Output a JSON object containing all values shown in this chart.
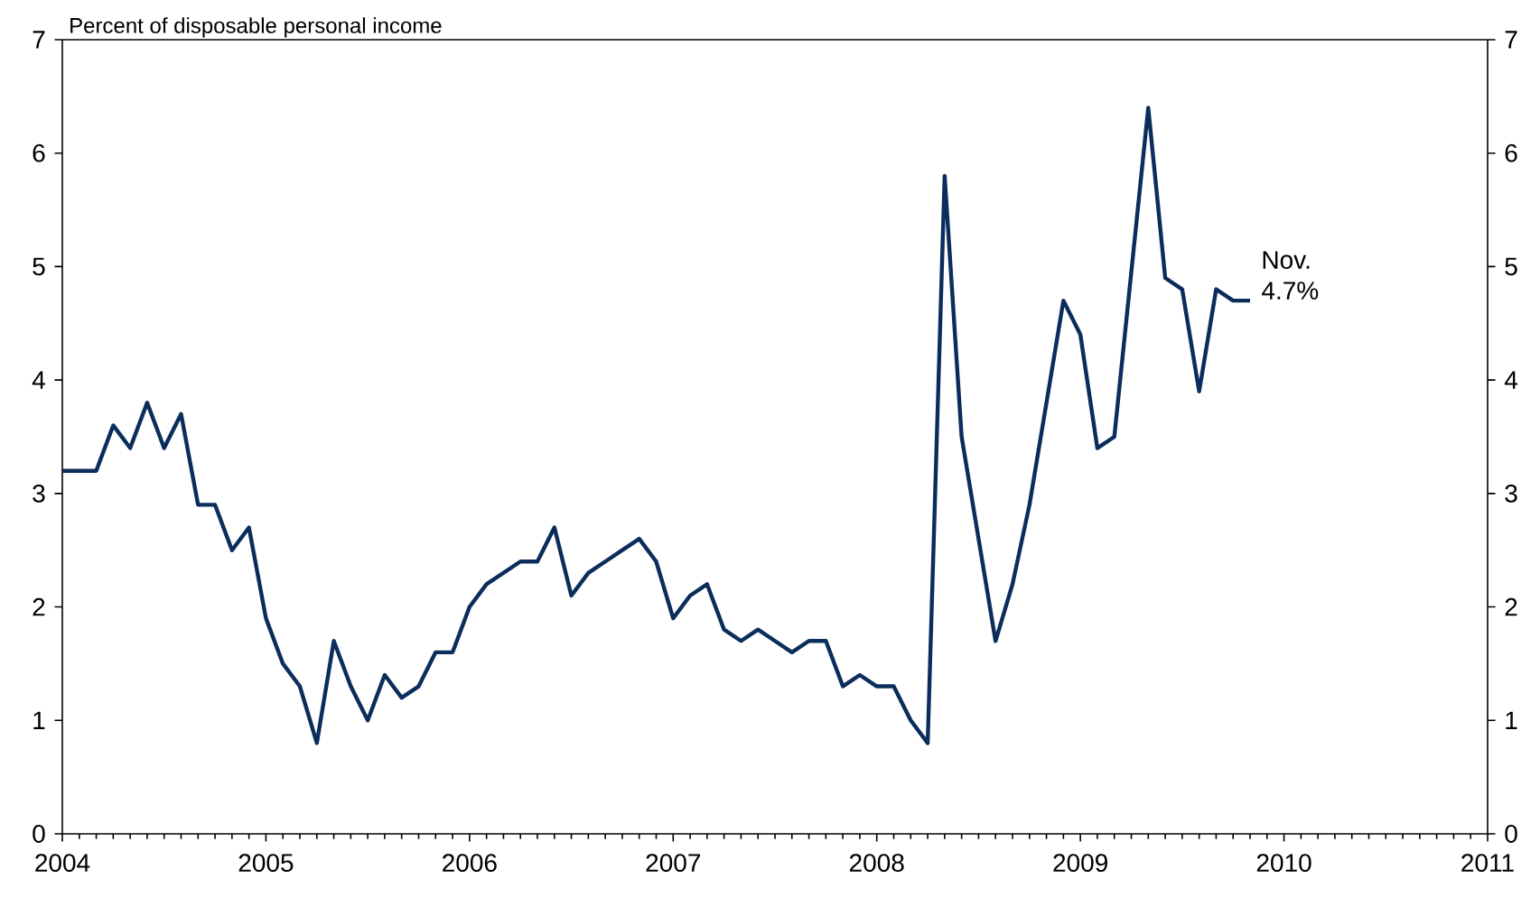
{
  "chart_data": {
    "type": "line",
    "ylabel": "Percent of disposable personal income",
    "x": [
      "2004-01",
      "2004-02",
      "2004-03",
      "2004-04",
      "2004-05",
      "2004-06",
      "2004-07",
      "2004-08",
      "2004-09",
      "2004-10",
      "2004-11",
      "2004-12",
      "2005-01",
      "2005-02",
      "2005-03",
      "2005-04",
      "2005-05",
      "2005-06",
      "2005-07",
      "2005-08",
      "2005-09",
      "2005-10",
      "2005-11",
      "2005-12",
      "2006-01",
      "2006-02",
      "2006-03",
      "2006-04",
      "2006-05",
      "2006-06",
      "2006-07",
      "2006-08",
      "2006-09",
      "2006-10",
      "2006-11",
      "2006-12",
      "2007-01",
      "2007-02",
      "2007-03",
      "2007-04",
      "2007-05",
      "2007-06",
      "2007-07",
      "2007-08",
      "2007-09",
      "2007-10",
      "2007-11",
      "2007-12",
      "2008-01",
      "2008-02",
      "2008-03",
      "2008-04",
      "2008-05",
      "2008-06",
      "2008-07",
      "2008-08",
      "2008-09",
      "2008-10",
      "2008-11",
      "2008-12",
      "2009-01",
      "2009-02",
      "2009-03",
      "2009-05",
      "2009-06",
      "2009-07",
      "2009-08",
      "2009-09",
      "2009-10",
      "2009-11"
    ],
    "series": [
      {
        "color": "#0b2d5b",
        "values": [
          3.2,
          3.2,
          3.2,
          3.6,
          3.4,
          3.8,
          3.4,
          3.7,
          2.9,
          2.9,
          2.5,
          2.7,
          1.9,
          1.5,
          1.3,
          0.8,
          1.7,
          1.3,
          1.0,
          1.4,
          1.2,
          1.3,
          1.6,
          1.6,
          2.0,
          2.2,
          2.3,
          2.4,
          2.4,
          2.7,
          2.1,
          2.3,
          2.4,
          2.5,
          2.6,
          2.4,
          1.9,
          2.1,
          2.2,
          1.8,
          1.7,
          1.8,
          1.7,
          1.6,
          1.7,
          1.7,
          1.3,
          1.4,
          1.3,
          1.3,
          1.0,
          0.8,
          5.8,
          3.5,
          2.6,
          1.7,
          2.2,
          2.9,
          3.8,
          4.7,
          4.4,
          3.4,
          3.5,
          6.4,
          4.9,
          4.8,
          3.9,
          4.8,
          4.7,
          4.7
        ]
      }
    ],
    "xlim": [
      "2004",
      "2011"
    ],
    "xticks": [
      "2004",
      "2005",
      "2006",
      "2007",
      "2008",
      "2009",
      "2010",
      "2011"
    ],
    "ylim": [
      0,
      7
    ],
    "yticks": [
      0,
      1,
      2,
      3,
      4,
      5,
      6,
      7
    ],
    "y2lim": [
      0,
      7
    ],
    "y2ticks": [
      0,
      1,
      2,
      3,
      4,
      5,
      6,
      7
    ],
    "annotations": [
      {
        "text": "Nov. 4.7%",
        "x": "2009-11",
        "y": 4.7
      }
    ]
  }
}
